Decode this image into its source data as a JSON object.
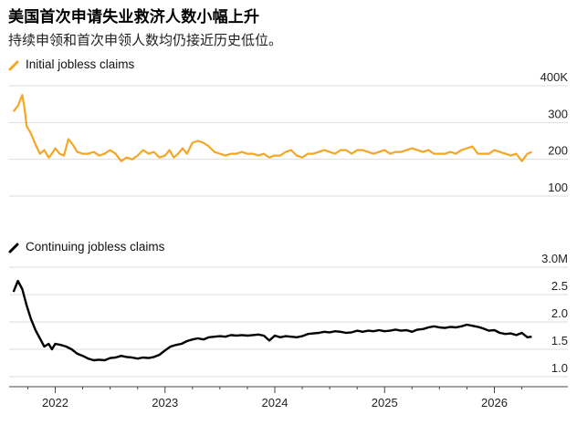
{
  "header": {
    "title": "美国首次申请失业救济人数小幅上升",
    "subtitle": "持续申领和首次申领人数均仍接近历史低位。"
  },
  "colors": {
    "initial": "#f5a623",
    "continuing": "#000000",
    "grid": "#dddddd"
  },
  "x_axis": {
    "ticks": [
      "2022",
      "2023",
      "2024",
      "2025",
      "2026"
    ],
    "tick_dates": [
      2022.0,
      2023.0,
      2024.0,
      2025.0,
      2026.0
    ],
    "range": [
      2021.58,
      2026.42
    ]
  },
  "chart_data": [
    {
      "type": "line",
      "legend": "Initial jobless claims",
      "color": "#f5a623",
      "ylim": [
        100,
        400
      ],
      "yticks": [
        100,
        200,
        300,
        400
      ],
      "ytick_labels": [
        "100",
        "200",
        "300",
        "400K"
      ],
      "x": [
        2021.62,
        2021.66,
        2021.7,
        2021.72,
        2021.74,
        2021.78,
        2021.82,
        2021.86,
        2021.9,
        2021.94,
        2021.97,
        2022.0,
        2022.04,
        2022.08,
        2022.12,
        2022.16,
        2022.2,
        2022.25,
        2022.3,
        2022.35,
        2022.4,
        2022.45,
        2022.5,
        2022.55,
        2022.6,
        2022.65,
        2022.7,
        2022.75,
        2022.8,
        2022.85,
        2022.9,
        2022.95,
        2023.0,
        2023.04,
        2023.08,
        2023.12,
        2023.16,
        2023.2,
        2023.25,
        2023.3,
        2023.35,
        2023.4,
        2023.45,
        2023.5,
        2023.55,
        2023.6,
        2023.65,
        2023.7,
        2023.75,
        2023.8,
        2023.85,
        2023.9,
        2023.95,
        2024.0,
        2024.05,
        2024.1,
        2024.15,
        2024.2,
        2024.25,
        2024.3,
        2024.35,
        2024.4,
        2024.45,
        2024.5,
        2024.55,
        2024.6,
        2024.65,
        2024.7,
        2024.75,
        2024.8,
        2024.85,
        2024.9,
        2024.95,
        2025.0,
        2025.05,
        2025.1,
        2025.15,
        2025.2,
        2025.25,
        2025.3,
        2025.35,
        2025.4,
        2025.45,
        2025.5,
        2025.55,
        2025.6,
        2025.65,
        2025.7,
        2025.75,
        2025.8,
        2025.85,
        2025.9,
        2025.95,
        2026.0,
        2026.05,
        2026.1,
        2026.15,
        2026.2,
        2026.25,
        2026.3,
        2026.34
      ],
      "values": [
        330,
        345,
        375,
        340,
        290,
        270,
        240,
        215,
        225,
        205,
        215,
        230,
        215,
        210,
        255,
        240,
        220,
        215,
        215,
        220,
        210,
        215,
        225,
        215,
        195,
        205,
        200,
        210,
        225,
        215,
        220,
        205,
        210,
        225,
        205,
        215,
        230,
        215,
        245,
        250,
        245,
        235,
        220,
        215,
        210,
        215,
        215,
        220,
        215,
        215,
        210,
        215,
        205,
        210,
        210,
        220,
        225,
        210,
        205,
        215,
        215,
        220,
        225,
        220,
        215,
        225,
        225,
        215,
        225,
        225,
        220,
        215,
        220,
        225,
        215,
        220,
        220,
        225,
        230,
        225,
        220,
        225,
        215,
        215,
        215,
        220,
        215,
        225,
        230,
        235,
        215,
        215,
        215,
        225,
        220,
        215,
        210,
        215,
        195,
        215,
        220
      ]
    },
    {
      "type": "line",
      "legend": "Continuing jobless claims",
      "color": "#000000",
      "ylim": [
        1.0,
        3.0
      ],
      "yticks": [
        1.0,
        1.5,
        2.0,
        2.5,
        3.0
      ],
      "ytick_labels": [
        "1.0",
        "1.5",
        "2.0",
        "2.5",
        "3.0M"
      ],
      "x": [
        2021.62,
        2021.66,
        2021.7,
        2021.74,
        2021.78,
        2021.82,
        2021.86,
        2021.9,
        2021.94,
        2021.97,
        2022.0,
        2022.05,
        2022.1,
        2022.15,
        2022.2,
        2022.25,
        2022.3,
        2022.35,
        2022.4,
        2022.45,
        2022.5,
        2022.55,
        2022.6,
        2022.65,
        2022.7,
        2022.75,
        2022.8,
        2022.85,
        2022.9,
        2022.95,
        2023.0,
        2023.05,
        2023.1,
        2023.15,
        2023.2,
        2023.25,
        2023.3,
        2023.35,
        2023.4,
        2023.45,
        2023.5,
        2023.55,
        2023.6,
        2023.65,
        2023.7,
        2023.75,
        2023.8,
        2023.85,
        2023.9,
        2023.95,
        2024.0,
        2024.05,
        2024.1,
        2024.15,
        2024.2,
        2024.25,
        2024.3,
        2024.35,
        2024.4,
        2024.45,
        2024.5,
        2024.55,
        2024.6,
        2024.65,
        2024.7,
        2024.75,
        2024.8,
        2024.85,
        2024.9,
        2024.95,
        2025.0,
        2025.05,
        2025.1,
        2025.15,
        2025.2,
        2025.25,
        2025.3,
        2025.35,
        2025.4,
        2025.45,
        2025.5,
        2025.55,
        2025.6,
        2025.65,
        2025.7,
        2025.75,
        2025.8,
        2025.85,
        2025.9,
        2025.95,
        2026.0,
        2026.05,
        2026.1,
        2026.15,
        2026.2,
        2026.25,
        2026.3,
        2026.34
      ],
      "values": [
        2.55,
        2.75,
        2.6,
        2.3,
        2.05,
        1.85,
        1.7,
        1.55,
        1.6,
        1.5,
        1.6,
        1.58,
        1.55,
        1.5,
        1.42,
        1.38,
        1.33,
        1.3,
        1.31,
        1.3,
        1.34,
        1.35,
        1.38,
        1.36,
        1.35,
        1.33,
        1.35,
        1.34,
        1.36,
        1.4,
        1.48,
        1.55,
        1.58,
        1.6,
        1.65,
        1.68,
        1.7,
        1.68,
        1.72,
        1.73,
        1.74,
        1.73,
        1.76,
        1.75,
        1.76,
        1.75,
        1.76,
        1.77,
        1.75,
        1.66,
        1.75,
        1.72,
        1.74,
        1.73,
        1.72,
        1.74,
        1.78,
        1.79,
        1.8,
        1.82,
        1.81,
        1.83,
        1.82,
        1.8,
        1.81,
        1.84,
        1.82,
        1.84,
        1.83,
        1.85,
        1.83,
        1.84,
        1.86,
        1.84,
        1.85,
        1.82,
        1.86,
        1.87,
        1.9,
        1.92,
        1.9,
        1.89,
        1.91,
        1.9,
        1.92,
        1.95,
        1.93,
        1.91,
        1.88,
        1.84,
        1.85,
        1.8,
        1.78,
        1.79,
        1.76,
        1.8,
        1.72,
        1.73
      ]
    }
  ]
}
